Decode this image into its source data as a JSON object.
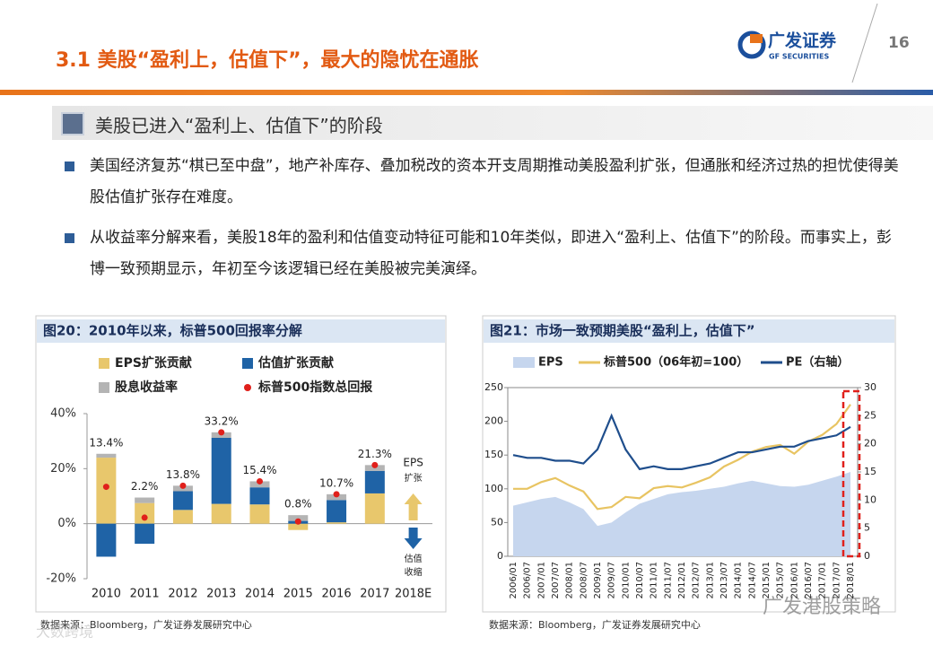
{
  "header": {
    "title": "3.1 美股“盈利上，估值下”，最大的隐忧在通胀",
    "logo": "广发证券",
    "logo_en": "GF SECURITIES",
    "page_number": "16"
  },
  "section": {
    "heading": "美股已进入“盈利上、估值下”的阶段",
    "bullets": [
      "美国经济复苏“棋已至中盘”，地产补库存、叠加税改的资本开支周期推动美股盈利扩张，但通胀和经济过热的担忧使得美股估值扩张存在难度。",
      "从收益率分解来看，美股18年的盈利和估值变动特征可能和10年类似，即进入“盈利上、估值下”的阶段。而事实上，彭博一致预期显示，年初至今该逻辑已经在美股被完美演绎。"
    ]
  },
  "chart_data": [
    {
      "type": "bar",
      "stacked": true,
      "title": "图20：2010年以来，标普500回报率分解",
      "categories": [
        "2010",
        "2011",
        "2012",
        "2013",
        "2014",
        "2015",
        "2016",
        "2017",
        "2018E"
      ],
      "series": [
        {
          "name": "EPS扩张贡献",
          "color": "#e8c76c",
          "values": [
            24,
            7.5,
            5,
            7.2,
            7,
            -2.3,
            0.5,
            11,
            null
          ]
        },
        {
          "name": "估值扩张贡献",
          "color": "#1f63a6",
          "values": [
            -12,
            -7.3,
            6.8,
            24,
            6.2,
            1.0,
            8.1,
            8.2,
            null
          ]
        },
        {
          "name": "股息收益率",
          "color": "#b4b4b4",
          "values": [
            1.4,
            2.0,
            2.0,
            2.0,
            2.2,
            2.1,
            2.1,
            2.1,
            null
          ]
        }
      ],
      "total": {
        "name": "标普500指数总回报",
        "color": "#e0201b",
        "values": [
          13.4,
          2.2,
          13.8,
          33.2,
          15.4,
          0.8,
          10.7,
          21.3,
          null
        ],
        "value_labels": [
          "13.4%",
          "2.2%",
          "13.8%",
          "33.2%",
          "15.4%",
          "0.8%",
          "10.7%",
          "21.3%",
          null
        ]
      },
      "ylim": [
        -20,
        40
      ],
      "yticks": [
        {
          "value": -20,
          "label": "-20%"
        },
        {
          "value": 0,
          "label": "0%"
        },
        {
          "value": 20,
          "label": "20%"
        },
        {
          "value": 40,
          "label": "40%"
        }
      ],
      "annotations": [
        "EPS",
        "扩张",
        "估值",
        "收缩"
      ],
      "source": "数据来源：Bloomberg，广发证券发展研究中心"
    },
    {
      "type": "line",
      "title": "图21：市场一致预期美股“盈利上，估值下”",
      "categories": [
        "2006/01",
        "2006/07",
        "2007/01",
        "2007/07",
        "2008/01",
        "2008/07",
        "2009/01",
        "2009/07",
        "2010/01",
        "2010/07",
        "2011/01",
        "2011/07",
        "2012/01",
        "2012/07",
        "2013/01",
        "2013/07",
        "2014/01",
        "2014/07",
        "2015/01",
        "2015/07",
        "2016/01",
        "2016/07",
        "2017/01",
        "2017/07",
        "2018/01"
      ],
      "series": [
        {
          "name": "EPS",
          "kind": "area",
          "color": "#c6d6ee",
          "values": [
            75,
            80,
            85,
            88,
            80,
            70,
            45,
            50,
            65,
            78,
            85,
            92,
            95,
            97,
            100,
            103,
            108,
            112,
            108,
            104,
            103,
            106,
            112,
            118,
            125
          ]
        },
        {
          "name": "标普500（06年初=100）",
          "color": "#e8c462",
          "values": [
            100,
            100,
            110,
            116,
            105,
            96,
            70,
            73,
            88,
            86,
            101,
            104,
            102,
            109,
            117,
            133,
            143,
            155,
            162,
            165,
            152,
            170,
            180,
            196,
            225
          ]
        },
        {
          "name": "PE（右轴）",
          "color": "#1f4e8c",
          "axis": "y2",
          "values": [
            18,
            17.5,
            17.5,
            17,
            17,
            16.5,
            19,
            25,
            19,
            15.5,
            16,
            15.5,
            15.5,
            16,
            16.5,
            17.5,
            18.5,
            18.5,
            19,
            19.5,
            19.5,
            20.5,
            21,
            21.5,
            23
          ]
        }
      ],
      "ylim": [
        0,
        250
      ],
      "yticks": [
        0,
        50,
        100,
        150,
        200,
        250
      ],
      "y2lim": [
        0,
        30
      ],
      "y2ticks": [
        0,
        5,
        10,
        15,
        20,
        25,
        30
      ],
      "source": "数据来源：Bloomberg，广发证券发展研究中心"
    }
  ],
  "watermarks": [
    "广发港股策略",
    "大数跨境"
  ]
}
